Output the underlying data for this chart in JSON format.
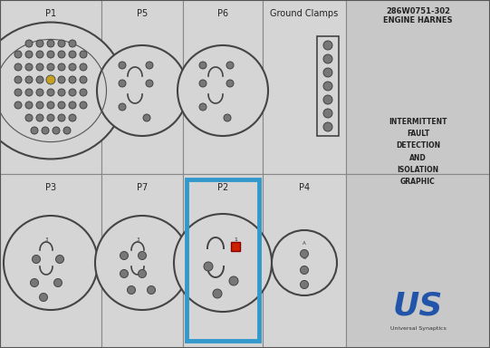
{
  "bg_color": "#c5c5c5",
  "cell_bg": "#d5d5d5",
  "info_bg": "#c8c8c8",
  "grid_color": "#888888",
  "circle_edge": "#444444",
  "pin_fill": "#777777",
  "pin_edge": "#444444",
  "highlight_color": "#3399cc",
  "red_pin_color": "#cc2200",
  "title1": "286W0751-302",
  "title2": "ENGINE HARNES",
  "intermittent_text": "INTERMITTENT\nFAULT\nDETECTION\nAND\nISOLATION\nGRAPHIC",
  "logo_text": "US",
  "logo_sub": "Universal Synaptics",
  "col_bounds": [
    0,
    112,
    202,
    290,
    382,
    432,
    541
  ],
  "row_bounds": [
    0,
    192,
    384
  ],
  "top_labels": [
    "P1",
    "P5",
    "P6",
    "Ground Clamps"
  ],
  "bot_labels": [
    "P3",
    "P7",
    "P2",
    "P4"
  ]
}
